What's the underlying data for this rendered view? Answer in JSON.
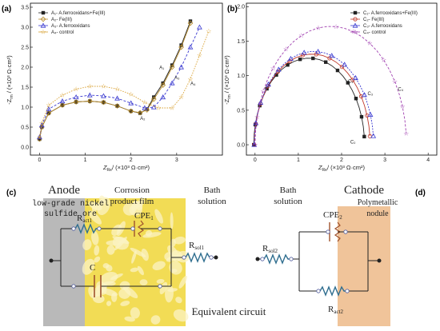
{
  "chart_data": [
    {
      "panel": "(a)",
      "type": "scatter",
      "xlim": [
        -0.2,
        4.0
      ],
      "ylim": [
        -0.2,
        3.6
      ],
      "xticks": [
        "0",
        "1",
        "2",
        "3"
      ],
      "yticks": [
        "0.0",
        "0.5",
        "1.0",
        "1.5",
        "2.0",
        "2.5",
        "3.0",
        "3.5"
      ],
      "xlabel_main": "Z",
      "xlabel_sub": "Re",
      "xlabel_unit": "/ (×10³ Ω·cm²)",
      "ylabel": "-Z_im / (×10³ Ω·cm²)",
      "legend_placement": "top-left",
      "series": [
        {
          "name": "A₁- A.ferrooxidans+Fe(III)",
          "color": "#222222",
          "marker": "square",
          "x": [
            0.0,
            0.05,
            0.2,
            0.5,
            0.8,
            1.1,
            1.4,
            1.7,
            2.0,
            2.2,
            2.35,
            2.5,
            2.7,
            2.9,
            3.1,
            3.3
          ],
          "y": [
            0.2,
            0.5,
            0.85,
            1.05,
            1.13,
            1.15,
            1.12,
            1.03,
            0.9,
            0.85,
            0.95,
            1.25,
            1.6,
            2.05,
            2.55,
            3.15
          ]
        },
        {
          "name": "A₂- Fe(III)",
          "color": "#b58a2a",
          "marker": "diamond",
          "x": [
            0.0,
            0.05,
            0.2,
            0.5,
            0.8,
            1.1,
            1.4,
            1.7,
            2.0,
            2.2,
            2.35,
            2.5,
            2.7,
            2.9,
            3.1,
            3.3
          ],
          "y": [
            0.2,
            0.5,
            0.85,
            1.05,
            1.13,
            1.15,
            1.12,
            1.03,
            0.9,
            0.86,
            0.93,
            1.2,
            1.55,
            2.0,
            2.5,
            3.1
          ]
        },
        {
          "name": "A₃- A.ferrooxidans",
          "color": "#3a3ad0",
          "marker": "triangle",
          "x": [
            0.0,
            0.05,
            0.2,
            0.5,
            0.8,
            1.1,
            1.4,
            1.7,
            2.0,
            2.3,
            2.5,
            2.7,
            2.9,
            3.1,
            3.3,
            3.5
          ],
          "y": [
            0.25,
            0.55,
            0.95,
            1.15,
            1.25,
            1.3,
            1.28,
            1.22,
            1.1,
            0.98,
            1.0,
            1.25,
            1.6,
            2.0,
            2.5,
            3.0
          ]
        },
        {
          "name": "A₄- control",
          "color": "#d8a030",
          "marker": "star",
          "x": [
            0.0,
            0.05,
            0.2,
            0.5,
            0.8,
            1.1,
            1.4,
            1.7,
            2.0,
            2.3,
            2.6,
            2.9,
            3.1,
            3.3,
            3.5,
            3.7
          ],
          "y": [
            0.25,
            0.6,
            1.05,
            1.3,
            1.45,
            1.52,
            1.52,
            1.45,
            1.32,
            1.12,
            0.98,
            0.98,
            1.25,
            1.7,
            2.3,
            2.9
          ]
        }
      ],
      "annotations": [
        {
          "text": "A₁",
          "x": 2.62,
          "y": 1.95
        },
        {
          "text": "A₃",
          "x": 2.95,
          "y": 1.7
        },
        {
          "text": "A₄",
          "x": 3.3,
          "y": 1.55
        },
        {
          "text": "A₂",
          "x": 2.2,
          "y": 0.68
        }
      ]
    },
    {
      "panel": "(b)",
      "type": "scatter",
      "xlim": [
        -0.2,
        4.2
      ],
      "ylim": [
        -0.15,
        2.05
      ],
      "xticks": [
        "0",
        "1",
        "2",
        "3",
        "4"
      ],
      "yticks": [
        "0.0",
        "0.5",
        "1.0",
        "1.5",
        "2.0"
      ],
      "xlabel_main": "Z",
      "xlabel_sub": "Re",
      "xlabel_unit": "/ (×10³ Ω·cm²)",
      "ylabel": "-Z_im / (×10³ Ω·cm²)",
      "legend_placement": "top-right",
      "series": [
        {
          "name": "C₁- A.ferrooxidans+Fe(III)",
          "color": "#222222",
          "marker": "square",
          "center": 1.25,
          "radius": 1.28
        },
        {
          "name": "C₂- Fe(III)",
          "color": "#c0392b",
          "marker": "circle",
          "center": 1.32,
          "radius": 1.34
        },
        {
          "name": "C₃- A.ferrooxidans",
          "color": "#3a3ad0",
          "marker": "triangle",
          "center": 1.36,
          "radius": 1.38
        },
        {
          "name": "C₄- control",
          "color": "#a040b0",
          "marker": "star",
          "center": 1.75,
          "radius": 1.75
        }
      ],
      "annotations": [
        {
          "text": "C₁",
          "x": 2.15,
          "y": 0.9
        },
        {
          "text": "C₃",
          "x": 2.6,
          "y": 0.72
        },
        {
          "text": "C₂",
          "x": 2.2,
          "y": 0.02
        },
        {
          "text": "C₄",
          "x": 3.3,
          "y": 0.78
        }
      ]
    }
  ],
  "circuit": {
    "panel_c": "(c)",
    "panel_d": "(d)",
    "anode_title": "Anode",
    "anode_sub1": "low-grade nickel",
    "anode_sub2": "sulfide ore",
    "film_1": "Corrosion",
    "film_2": "product film",
    "bath_left_1": "Bath",
    "bath_left_2": "solution",
    "bath_right_1": "Bath",
    "bath_right_2": "solution",
    "cathode_title": "Cathode",
    "cathode_sub1": "Polymetallic",
    "cathode_sub2": "nodule",
    "r_act1": "R",
    "r_act1_sub": "act1",
    "cpe1": "CPE",
    "cpe1_sub": "1",
    "c": "C",
    "r_sol1": "R",
    "r_sol1_sub": "sol1",
    "r_sol2": "R",
    "r_sol2_sub": "sol2",
    "cpe2": "CPE",
    "cpe2_sub": "2",
    "r_act2": "R",
    "r_act2_sub": "act2",
    "caption": "Equivalent circuit",
    "colors": {
      "anode": "#b9b9b9",
      "film": "#f2dc55",
      "cathode": "#f0c49a",
      "resistor": "#2f6e8f",
      "cpe": "#a0522d",
      "cap": "#a0522d"
    }
  }
}
